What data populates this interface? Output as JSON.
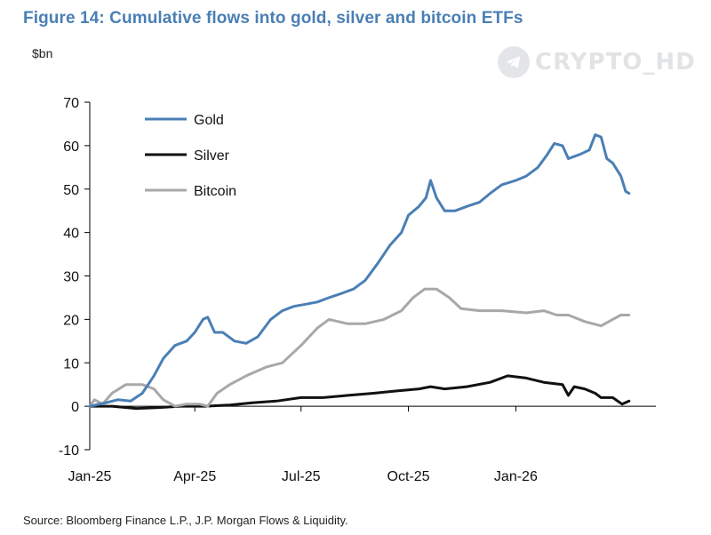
{
  "header": {
    "title": "Figure 14: Cumulative flows into gold, silver and bitcoin ETFs",
    "unit": "$bn"
  },
  "footer": {
    "source": "Source: Bloomberg Finance L.P., J.P. Morgan Flows & Liquidity."
  },
  "watermark": {
    "text": "CRYPTO_HD",
    "icon": "telegram-icon"
  },
  "chart_data": {
    "type": "line",
    "title": "Figure 14: Cumulative flows into gold, silver and bitcoin ETFs",
    "ylabel": "$bn",
    "xlabel": "",
    "ylim": [
      -10,
      70
    ],
    "yticks": [
      -10,
      0,
      10,
      20,
      30,
      40,
      50,
      60,
      70
    ],
    "xlim": [
      "2025-01-01",
      "2026-05-01"
    ],
    "xticks": [
      {
        "label": "Jan-25",
        "date": "2025-01-01"
      },
      {
        "label": "Apr-25",
        "date": "2025-04-01"
      },
      {
        "label": "Jul-25",
        "date": "2025-07-01"
      },
      {
        "label": "Oct-25",
        "date": "2025-10-01"
      },
      {
        "label": "Jan-26",
        "date": "2026-01-01"
      }
    ],
    "grid": false,
    "legend": "top-left",
    "series": [
      {
        "name": "Gold",
        "color": "#4a7fb5",
        "points": [
          [
            "2025-01-01",
            0
          ],
          [
            "2025-01-15",
            0.8
          ],
          [
            "2025-01-25",
            1.5
          ],
          [
            "2025-02-05",
            1.2
          ],
          [
            "2025-02-15",
            3
          ],
          [
            "2025-02-25",
            7
          ],
          [
            "2025-03-05",
            11
          ],
          [
            "2025-03-15",
            14
          ],
          [
            "2025-03-25",
            15
          ],
          [
            "2025-04-01",
            17
          ],
          [
            "2025-04-08",
            20
          ],
          [
            "2025-04-12",
            20.5
          ],
          [
            "2025-04-18",
            17
          ],
          [
            "2025-04-25",
            17
          ],
          [
            "2025-05-05",
            15
          ],
          [
            "2025-05-15",
            14.5
          ],
          [
            "2025-05-25",
            16
          ],
          [
            "2025-06-05",
            20
          ],
          [
            "2025-06-15",
            22
          ],
          [
            "2025-06-25",
            23
          ],
          [
            "2025-07-05",
            23.5
          ],
          [
            "2025-07-15",
            24
          ],
          [
            "2025-07-25",
            25
          ],
          [
            "2025-08-05",
            26
          ],
          [
            "2025-08-15",
            27
          ],
          [
            "2025-08-25",
            29
          ],
          [
            "2025-09-05",
            33
          ],
          [
            "2025-09-15",
            37
          ],
          [
            "2025-09-25",
            40
          ],
          [
            "2025-10-01",
            44
          ],
          [
            "2025-10-10",
            46
          ],
          [
            "2025-10-16",
            48
          ],
          [
            "2025-10-20",
            52
          ],
          [
            "2025-10-25",
            48
          ],
          [
            "2025-11-01",
            45
          ],
          [
            "2025-11-10",
            45
          ],
          [
            "2025-11-20",
            46
          ],
          [
            "2025-12-01",
            47
          ],
          [
            "2025-12-10",
            49
          ],
          [
            "2025-12-20",
            51
          ],
          [
            "2026-01-01",
            52
          ],
          [
            "2026-01-10",
            53
          ],
          [
            "2026-01-20",
            55
          ],
          [
            "2026-01-28",
            58
          ],
          [
            "2026-02-03",
            60.5
          ],
          [
            "2026-02-10",
            60
          ],
          [
            "2026-02-15",
            57
          ],
          [
            "2026-02-25",
            58
          ],
          [
            "2026-03-05",
            59
          ],
          [
            "2026-03-10",
            62.5
          ],
          [
            "2026-03-15",
            62
          ],
          [
            "2026-03-20",
            57
          ],
          [
            "2026-03-25",
            56
          ],
          [
            "2026-04-01",
            53
          ],
          [
            "2026-04-05",
            49.5
          ],
          [
            "2026-04-08",
            49
          ]
        ]
      },
      {
        "name": "Silver",
        "color": "#111111",
        "points": [
          [
            "2025-01-01",
            0
          ],
          [
            "2025-01-20",
            0
          ],
          [
            "2025-02-10",
            -0.5
          ],
          [
            "2025-03-01",
            -0.3
          ],
          [
            "2025-03-20",
            0
          ],
          [
            "2025-04-10",
            0
          ],
          [
            "2025-05-01",
            0.3
          ],
          [
            "2025-05-20",
            0.8
          ],
          [
            "2025-06-10",
            1.2
          ],
          [
            "2025-07-01",
            2
          ],
          [
            "2025-07-20",
            2
          ],
          [
            "2025-08-10",
            2.5
          ],
          [
            "2025-09-01",
            3
          ],
          [
            "2025-09-20",
            3.5
          ],
          [
            "2025-10-10",
            4
          ],
          [
            "2025-10-20",
            4.5
          ],
          [
            "2025-11-01",
            4
          ],
          [
            "2025-11-20",
            4.5
          ],
          [
            "2025-12-10",
            5.5
          ],
          [
            "2025-12-25",
            7
          ],
          [
            "2026-01-10",
            6.5
          ],
          [
            "2026-01-25",
            5.5
          ],
          [
            "2026-02-10",
            5
          ],
          [
            "2026-02-15",
            2.5
          ],
          [
            "2026-02-20",
            4.5
          ],
          [
            "2026-03-01",
            4
          ],
          [
            "2026-03-10",
            3
          ],
          [
            "2026-03-15",
            2
          ],
          [
            "2026-03-25",
            2
          ],
          [
            "2026-04-02",
            0.5
          ],
          [
            "2026-04-08",
            1.2
          ]
        ]
      },
      {
        "name": "Bitcoin",
        "color": "#a8a8a8",
        "points": [
          [
            "2025-01-01",
            0
          ],
          [
            "2025-01-05",
            1.5
          ],
          [
            "2025-01-12",
            0.5
          ],
          [
            "2025-01-20",
            3
          ],
          [
            "2025-02-01",
            5
          ],
          [
            "2025-02-15",
            5
          ],
          [
            "2025-02-25",
            4
          ],
          [
            "2025-03-05",
            1.5
          ],
          [
            "2025-03-15",
            0
          ],
          [
            "2025-03-25",
            0.5
          ],
          [
            "2025-04-05",
            0.5
          ],
          [
            "2025-04-12",
            0
          ],
          [
            "2025-04-20",
            3
          ],
          [
            "2025-05-01",
            5
          ],
          [
            "2025-05-15",
            7
          ],
          [
            "2025-06-01",
            9
          ],
          [
            "2025-06-15",
            10
          ],
          [
            "2025-07-01",
            14
          ],
          [
            "2025-07-15",
            18
          ],
          [
            "2025-07-25",
            20
          ],
          [
            "2025-08-10",
            19
          ],
          [
            "2025-08-25",
            19
          ],
          [
            "2025-09-10",
            20
          ],
          [
            "2025-09-25",
            22
          ],
          [
            "2025-10-05",
            25
          ],
          [
            "2025-10-15",
            27
          ],
          [
            "2025-10-25",
            27
          ],
          [
            "2025-11-05",
            25
          ],
          [
            "2025-11-15",
            22.5
          ],
          [
            "2025-12-01",
            22
          ],
          [
            "2025-12-20",
            22
          ],
          [
            "2026-01-10",
            21.5
          ],
          [
            "2026-01-25",
            22
          ],
          [
            "2026-02-05",
            21
          ],
          [
            "2026-02-15",
            21
          ],
          [
            "2026-03-01",
            19.5
          ],
          [
            "2026-03-15",
            18.5
          ],
          [
            "2026-03-25",
            20
          ],
          [
            "2026-04-01",
            21
          ],
          [
            "2026-04-08",
            21
          ]
        ]
      }
    ]
  }
}
